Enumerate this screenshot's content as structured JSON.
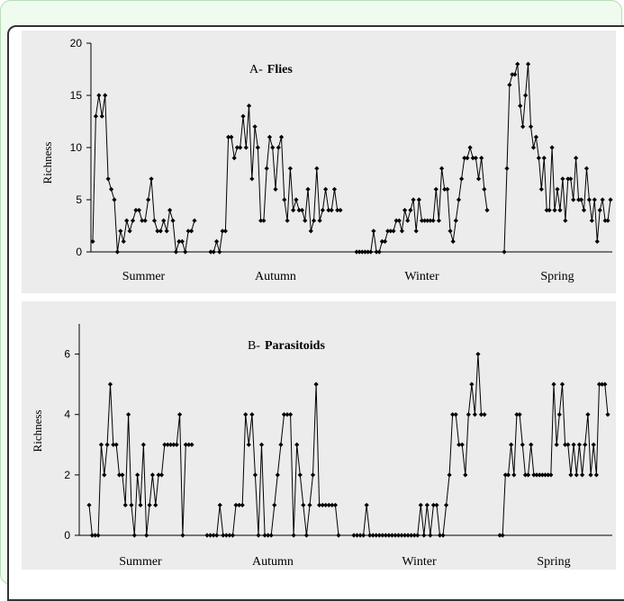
{
  "chart_data": [
    {
      "type": "line",
      "title_prefix": "A-",
      "title_main": "Flies",
      "ylabel": "Richness",
      "ylim": [
        0,
        20
      ],
      "yticks": [
        0,
        5,
        10,
        15,
        20
      ],
      "season_labels": [
        "Summer",
        "Autumn",
        "Winter",
        "Spring"
      ],
      "grid": false,
      "marker": "diamond",
      "series": [
        {
          "values": [
            1,
            13,
            15,
            13,
            15,
            7,
            6,
            5,
            0,
            2,
            1,
            3,
            2,
            3,
            4,
            4,
            3,
            3,
            5,
            7,
            3,
            2,
            2,
            3,
            2,
            4,
            3,
            0,
            1,
            1,
            0,
            2,
            2,
            3
          ]
        },
        {
          "values": [
            0,
            0,
            1,
            0,
            2,
            2,
            11,
            11,
            9,
            10,
            10,
            13,
            10,
            14,
            7,
            12,
            10,
            3,
            3,
            8,
            11,
            10,
            6,
            10,
            11,
            5,
            3,
            8,
            4,
            5,
            4,
            4,
            3,
            6,
            2,
            3,
            8,
            3,
            4,
            6,
            4,
            4,
            6,
            4,
            4
          ]
        },
        {
          "values": [
            0,
            0,
            0,
            0,
            0,
            0,
            2,
            0,
            0,
            1,
            1,
            2,
            2,
            2,
            3,
            3,
            2,
            4,
            3,
            4,
            5,
            2,
            5,
            3,
            3,
            3,
            3,
            3,
            6,
            3,
            8,
            6,
            6,
            2,
            1,
            3,
            5,
            7,
            9,
            9,
            10,
            9,
            9,
            7,
            9,
            6,
            4
          ]
        },
        {
          "values": [
            0,
            8,
            16,
            17,
            17,
            18,
            14,
            12,
            15,
            18,
            12,
            10,
            11,
            9,
            6,
            9,
            4,
            4,
            10,
            4,
            6,
            4,
            7,
            3,
            7,
            7,
            5,
            9,
            5,
            5,
            4,
            8,
            5,
            3,
            5,
            1,
            4,
            5,
            3,
            3,
            5
          ]
        }
      ]
    },
    {
      "type": "line",
      "title_prefix": "B-",
      "title_main": "Parasitoids",
      "ylabel": "Richness",
      "ylim": [
        0,
        7
      ],
      "yticks": [
        0,
        2,
        4,
        6
      ],
      "season_labels": [
        "Summer",
        "Autumn",
        "Winter",
        "Spring"
      ],
      "grid": false,
      "marker": "diamond",
      "series": [
        {
          "values": [
            1,
            0,
            0,
            0,
            3,
            2,
            3,
            5,
            3,
            3,
            2,
            2,
            1,
            4,
            1,
            0,
            2,
            1,
            3,
            0,
            1,
            2,
            1,
            2,
            2,
            3,
            3,
            3,
            3,
            3,
            4,
            0,
            3,
            3,
            3
          ]
        },
        {
          "values": [
            0,
            0,
            0,
            0,
            1,
            0,
            0,
            0,
            0,
            1,
            1,
            1,
            4,
            3,
            4,
            2,
            0,
            3,
            0,
            0,
            0,
            1,
            2,
            3,
            4,
            4,
            4,
            0,
            3,
            2,
            1,
            0,
            1,
            2,
            5,
            1,
            1,
            1,
            1,
            1,
            1,
            0
          ]
        },
        {
          "values": [
            0,
            0,
            0,
            0,
            1,
            0,
            0,
            0,
            0,
            0,
            0,
            0,
            0,
            0,
            0,
            0,
            0,
            0,
            0,
            0,
            0,
            1,
            0,
            1,
            0,
            1,
            1,
            0,
            0,
            1,
            2,
            4,
            4,
            3,
            3,
            2,
            4,
            5,
            4,
            6,
            4,
            4
          ]
        },
        {
          "values": [
            0,
            0,
            2,
            2,
            3,
            2,
            4,
            4,
            3,
            2,
            2,
            3,
            2,
            2,
            2,
            2,
            2,
            2,
            2,
            5,
            3,
            4,
            5,
            3,
            3,
            2,
            3,
            2,
            3,
            2,
            3,
            4,
            2,
            3,
            2,
            5,
            5,
            5,
            4
          ]
        }
      ]
    }
  ]
}
